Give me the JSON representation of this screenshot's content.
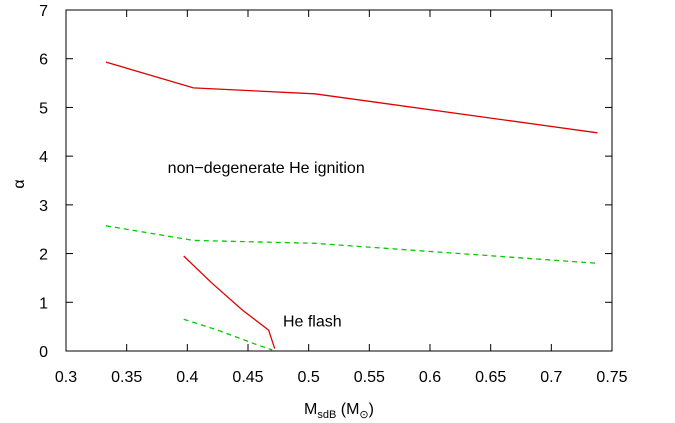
{
  "chart_data": {
    "type": "line",
    "xlabel": {
      "main": "M",
      "sub": "sdB",
      "unit_open": " (M",
      "unit_sub": "⊙",
      "unit_close": ")"
    },
    "ylabel": "α",
    "xlim": [
      0.3,
      0.75
    ],
    "ylim": [
      0,
      7
    ],
    "xticks": [
      "0.3",
      "0.35",
      "0.4",
      "0.45",
      "0.5",
      "0.55",
      "0.6",
      "0.65",
      "0.7",
      "0.75"
    ],
    "yticks": [
      "0",
      "1",
      "2",
      "3",
      "4",
      "5",
      "6",
      "7"
    ],
    "grid": false,
    "annotations": [
      {
        "text": "non−degenerate He ignition",
        "x": 0.465,
        "y": 3.65
      },
      {
        "text": "He flash",
        "x": 0.503,
        "y": 0.5
      }
    ],
    "series": [
      {
        "style": "solid",
        "color": "#e00000",
        "x": [
          0.333,
          0.405,
          0.505,
          0.738
        ],
        "y": [
          5.93,
          5.4,
          5.28,
          4.48
        ]
      },
      {
        "style": "dashed",
        "color": "#00cc00",
        "x": [
          0.333,
          0.405,
          0.505,
          0.738
        ],
        "y": [
          2.57,
          2.27,
          2.21,
          1.8
        ]
      },
      {
        "style": "solid",
        "color": "#e00000",
        "x": [
          0.397,
          0.42,
          0.445,
          0.467,
          0.472
        ],
        "y": [
          1.95,
          1.4,
          0.85,
          0.43,
          0.05
        ]
      },
      {
        "style": "dashed",
        "color": "#00cc00",
        "x": [
          0.397,
          0.425,
          0.455,
          0.47
        ],
        "y": [
          0.65,
          0.43,
          0.15,
          0.02
        ]
      }
    ]
  }
}
